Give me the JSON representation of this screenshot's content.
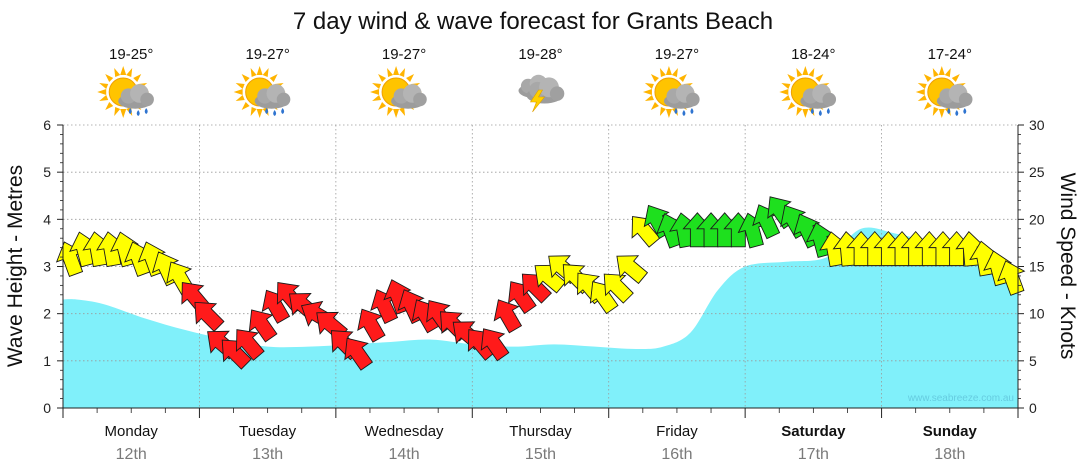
{
  "chart_data": {
    "type": "area",
    "title": "7 day wind & wave forecast for Grants Beach",
    "ylabel_left": "Wave Height - Metres",
    "ylabel_right": "Wind Speed - Knots",
    "ylim_left": [
      0,
      6
    ],
    "ylim_right": [
      0,
      30
    ],
    "yticks_left": [
      "0",
      "1",
      "2",
      "3",
      "4",
      "5",
      "6"
    ],
    "yticks_right": [
      "0",
      "5",
      "10",
      "15",
      "20",
      "25",
      "30"
    ],
    "grid": true,
    "credit": "www.seabreeze.com.au",
    "days": [
      {
        "name": "Monday",
        "date": "12th",
        "temp": "19-25°",
        "weather": "sun-cloud-showers-icon",
        "bold": false
      },
      {
        "name": "Tuesday",
        "date": "13th",
        "temp": "19-27°",
        "weather": "sun-cloud-showers-icon",
        "bold": false
      },
      {
        "name": "Wednesday",
        "date": "14th",
        "temp": "19-27°",
        "weather": "sun-cloud-icon",
        "bold": false
      },
      {
        "name": "Thursday",
        "date": "15th",
        "temp": "19-28°",
        "weather": "storm-cloud-icon",
        "bold": false
      },
      {
        "name": "Friday",
        "date": "16th",
        "temp": "19-27°",
        "weather": "sun-cloud-showers-icon",
        "bold": false
      },
      {
        "name": "Saturday",
        "date": "17th",
        "temp": "18-24°",
        "weather": "sun-cloud-showers-icon",
        "bold": true
      },
      {
        "name": "Sunday",
        "date": "18th",
        "temp": "17-24°",
        "weather": "sun-cloud-showers-icon",
        "bold": true
      }
    ],
    "wave_height": {
      "x_days": [
        0,
        0.1,
        0.3,
        0.6,
        0.9,
        1.2,
        1.5,
        1.8,
        2.1,
        2.4,
        2.7,
        3.0,
        3.3,
        3.6,
        3.9,
        4.2,
        4.4,
        4.6,
        4.8,
        5.0,
        5.3,
        5.6,
        5.85,
        6.1,
        6.4,
        6.7,
        6.9,
        7.0
      ],
      "values": [
        2.3,
        2.3,
        2.2,
        1.9,
        1.65,
        1.45,
        1.3,
        1.3,
        1.35,
        1.4,
        1.45,
        1.35,
        1.3,
        1.35,
        1.3,
        1.25,
        1.3,
        1.6,
        2.5,
        3.0,
        3.1,
        3.2,
        3.8,
        3.7,
        3.5,
        3.3,
        3.0,
        2.9
      ]
    },
    "wind": {
      "color_legend": {
        "light": "#ffff00",
        "moderate": "#1ee01e",
        "strong": "#ff1a1a"
      },
      "x_days": [
        0.05,
        0.15,
        0.25,
        0.35,
        0.45,
        0.55,
        0.65,
        0.75,
        0.85,
        0.95,
        1.05,
        1.15,
        1.25,
        1.35,
        1.45,
        1.55,
        1.65,
        1.75,
        1.85,
        1.95,
        2.05,
        2.15,
        2.25,
        2.35,
        2.45,
        2.55,
        2.65,
        2.75,
        2.85,
        2.95,
        3.05,
        3.15,
        3.25,
        3.35,
        3.45,
        3.55,
        3.65,
        3.75,
        3.85,
        3.95,
        4.05,
        4.15,
        4.25,
        4.35,
        4.45,
        4.55,
        4.65,
        4.75,
        4.85,
        4.95,
        5.05,
        5.15,
        5.25,
        5.35,
        5.45,
        5.55,
        5.65,
        5.75,
        5.85,
        5.95,
        6.05,
        6.15,
        6.25,
        6.35,
        6.45,
        6.55,
        6.65,
        6.75,
        6.85,
        6.95
      ],
      "knots": [
        16,
        17,
        17,
        17,
        17,
        16,
        16,
        15,
        14,
        12,
        10,
        7,
        6,
        7,
        9,
        11,
        12,
        11,
        10,
        9,
        7,
        6,
        9,
        11,
        12,
        11,
        10,
        10,
        9,
        8,
        7,
        7,
        10,
        12,
        13,
        14,
        15,
        14,
        13,
        12,
        13,
        15,
        19,
        20,
        19,
        19,
        19,
        19,
        19,
        19,
        19,
        20,
        21,
        20,
        19,
        18,
        17,
        17,
        17,
        17,
        17,
        17,
        17,
        17,
        17,
        17,
        17,
        16,
        15,
        14
      ],
      "rotation_deg": [
        -20,
        -15,
        -10,
        -10,
        -15,
        -20,
        -20,
        -25,
        -30,
        -40,
        -45,
        -50,
        -45,
        -40,
        -35,
        -30,
        -40,
        -50,
        -60,
        -50,
        -45,
        -35,
        -30,
        -25,
        -20,
        -25,
        -30,
        -35,
        -45,
        -50,
        -40,
        -35,
        -30,
        -35,
        -45,
        -50,
        -50,
        -45,
        -40,
        -35,
        -45,
        -50,
        -40,
        -30,
        -20,
        -10,
        0,
        0,
        0,
        0,
        -15,
        -25,
        -35,
        -30,
        -25,
        -15,
        -10,
        -5,
        0,
        0,
        0,
        0,
        0,
        0,
        0,
        0,
        -5,
        -10,
        -15,
        -20
      ],
      "category": [
        "light",
        "light",
        "light",
        "light",
        "light",
        "light",
        "light",
        "light",
        "light",
        "strong",
        "strong",
        "strong",
        "strong",
        "strong",
        "strong",
        "strong",
        "strong",
        "strong",
        "strong",
        "strong",
        "strong",
        "strong",
        "strong",
        "strong",
        "strong",
        "strong",
        "strong",
        "strong",
        "strong",
        "strong",
        "strong",
        "strong",
        "strong",
        "strong",
        "strong",
        "light",
        "light",
        "light",
        "light",
        "light",
        "light",
        "light",
        "light",
        "moderate",
        "moderate",
        "moderate",
        "moderate",
        "moderate",
        "moderate",
        "moderate",
        "moderate",
        "moderate",
        "moderate",
        "moderate",
        "moderate",
        "moderate",
        "light",
        "light",
        "light",
        "light",
        "light",
        "light",
        "light",
        "light",
        "light",
        "light",
        "light",
        "light",
        "light",
        "light"
      ]
    }
  }
}
